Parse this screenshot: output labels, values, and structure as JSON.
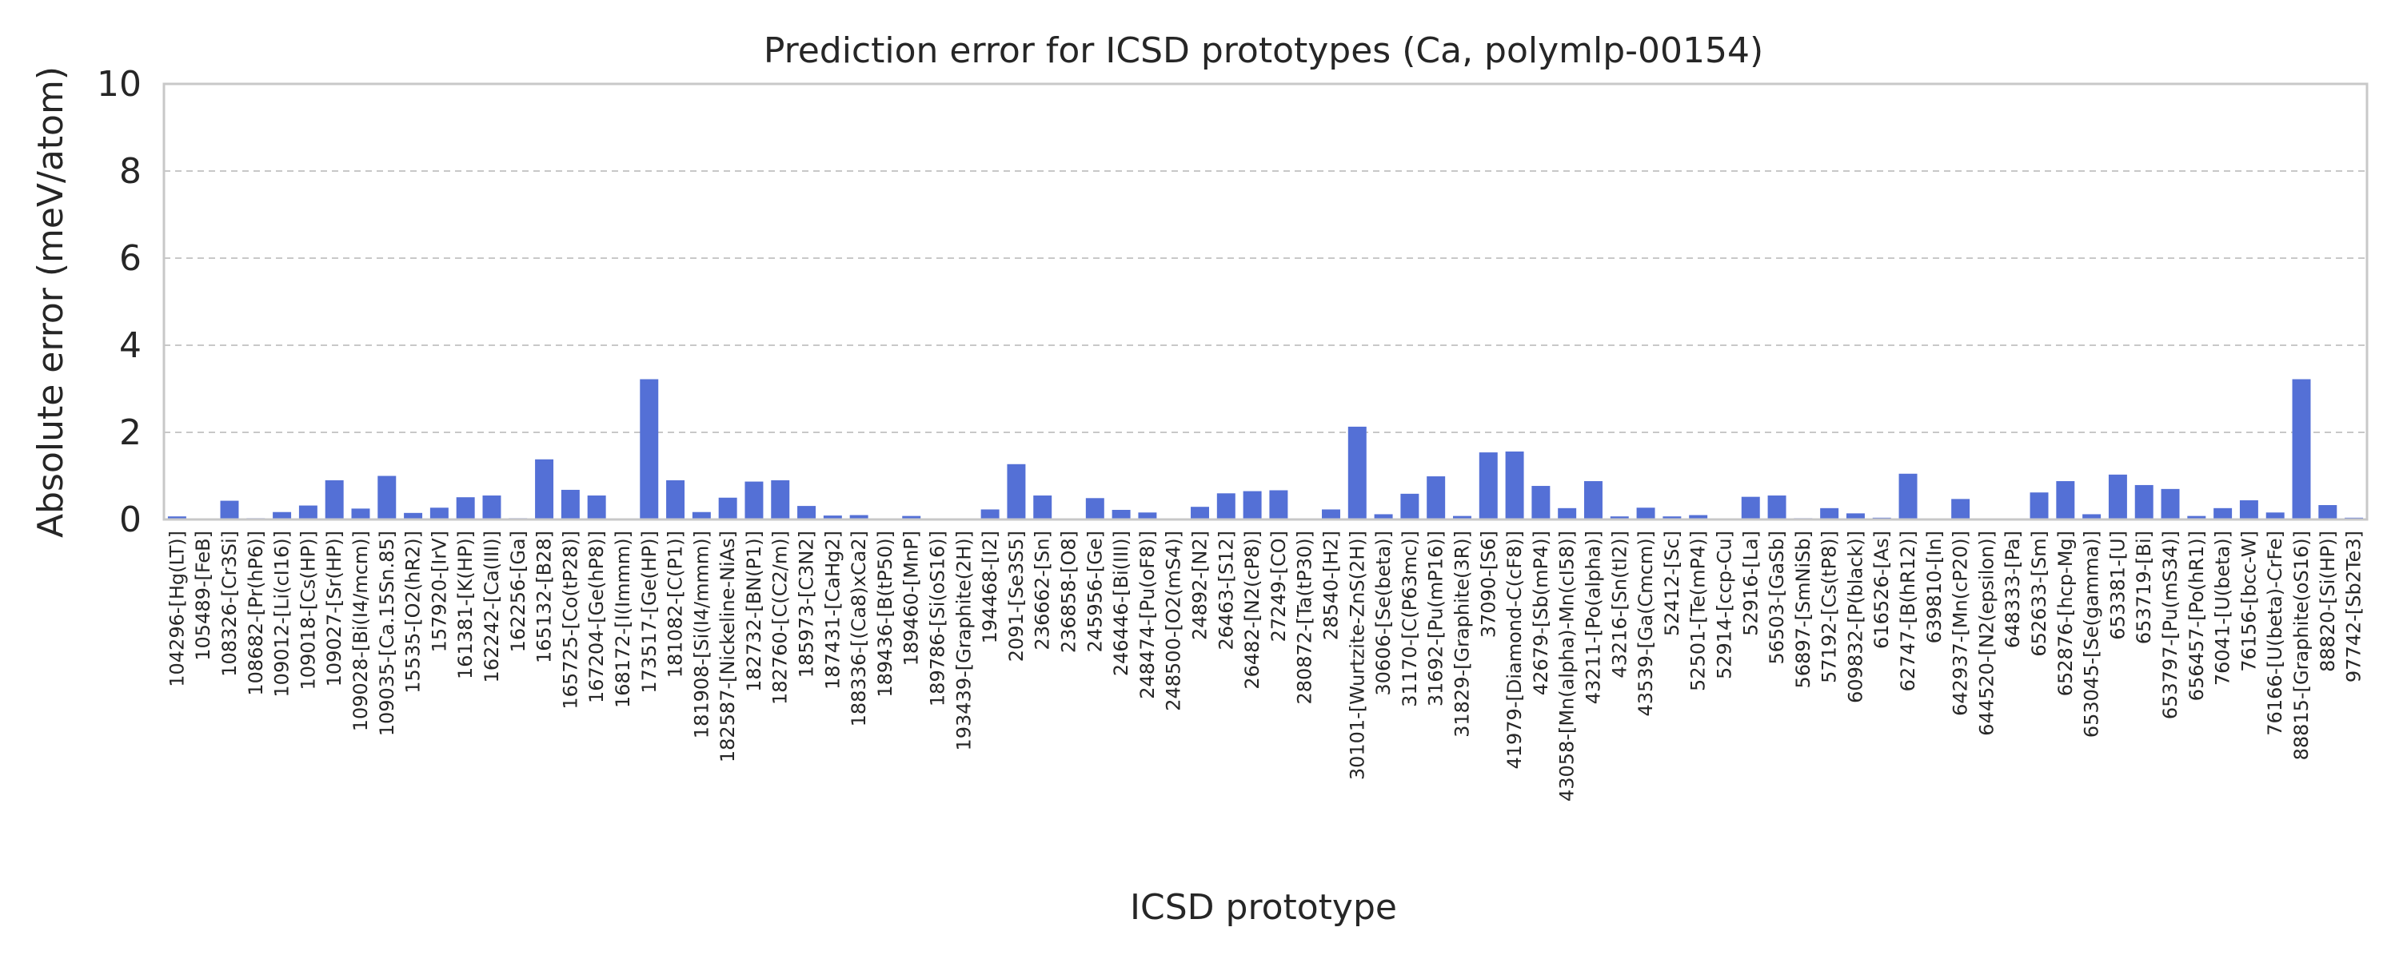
{
  "chart_data": {
    "type": "bar",
    "title": "Prediction error for ICSD prototypes (Ca, polymlp-00154)",
    "xlabel": "ICSD prototype",
    "ylabel": "Absolute error (meV/atom)",
    "ylim": [
      0,
      10
    ],
    "yticks": [
      "0",
      "2",
      "4",
      "6",
      "8",
      "10"
    ],
    "grid": true,
    "bar_color": "#5470d6",
    "categories": [
      "104296-[Hg(LT)]",
      "105489-[FeB]",
      "108326-[Cr3Si]",
      "108682-[Pr(hP6)]",
      "109012-[Li(cI16)]",
      "109018-[Cs(HP)]",
      "109027-[Sr(HP)]",
      "109028-[Bi(I4/mcm)]",
      "109035-[Ca.15Sn.85]",
      "15535-[O2(hR2)]",
      "157920-[IrV]",
      "161381-[K(HP)]",
      "162242-[Ca(III)]",
      "162256-[Ga]",
      "165132-[B28]",
      "165725-[Co(tP28)]",
      "167204-[Ge(hP8)]",
      "168172-[I(Immm)]",
      "173517-[Ge(HP)]",
      "181082-[C(P1)]",
      "181908-[Si(I4/mmm)]",
      "182587-[Nickeline-NiAs]",
      "182732-[BN(P1)]",
      "182760-[C(C2/m)]",
      "185973-[C3N2]",
      "187431-[CaHg2]",
      "188336-[(Ca8)xCa2]",
      "189436-[B(tP50)]",
      "189460-[MnP]",
      "189786-[Si(oS16)]",
      "193439-[Graphite(2H)]",
      "194468-[I2]",
      "2091-[Se3S5]",
      "236662-[Sn]",
      "236858-[O8]",
      "245956-[Ge]",
      "246446-[Bi(III)]",
      "248474-[Pu(oF8)]",
      "248500-[O2(mS4)]",
      "24892-[N2]",
      "26463-[S12]",
      "26482-[N2(cP8)]",
      "27249-[CO]",
      "280872-[Ta(tP30)]",
      "28540-[H2]",
      "30101-[Wurtzite-ZnS(2H)]",
      "30606-[Se(beta)]",
      "31170-[C(P63mc)]",
      "31692-[Pu(mP16)]",
      "31829-[Graphite(3R)]",
      "37090-[S6]",
      "41979-[Diamond-C(cF8)]",
      "42679-[Sb(mP4)]",
      "43058-[Mn(alpha)-Mn(cI58)]",
      "43211-[Po(alpha)]",
      "43216-[Sn(tI2)]",
      "43539-[Ga(Cmcm)]",
      "52412-[Sc]",
      "52501-[Te(mP4)]",
      "52914-[ccp-Cu]",
      "52916-[La]",
      "56503-[GaSb]",
      "56897-[SmNiSb]",
      "57192-[Cs(tP8)]",
      "609832-[P(black)]",
      "616526-[As]",
      "62747-[B(hR12)]",
      "639810-[In]",
      "642937-[Mn(cP20)]",
      "644520-[N2(epsilon)]",
      "648333-[Pa]",
      "652633-[Sm]",
      "652876-[hcp-Mg]",
      "653045-[Se(gamma)]",
      "653381-[U]",
      "653719-[Bi]",
      "653797-[Pu(mS34)]",
      "656457-[Po(hR1)]",
      "76041-[U(beta)]",
      "76156-[bcc-W]",
      "76166-[U(beta)-CrFe]",
      "88815-[Graphite(oS16)]",
      "88820-[Si(HP)]",
      "97742-[Sb2Te3]"
    ],
    "values": [
      0.07,
      0.0,
      0.43,
      0.03,
      0.17,
      0.32,
      0.9,
      0.25,
      1.0,
      0.15,
      0.27,
      0.51,
      0.55,
      0.03,
      1.38,
      0.68,
      0.55,
      0.0,
      3.22,
      0.9,
      0.17,
      0.5,
      0.87,
      0.9,
      0.31,
      0.09,
      0.1,
      0.0,
      0.08,
      0.0,
      0.0,
      0.23,
      1.27,
      0.55,
      0.0,
      0.49,
      0.22,
      0.16,
      0.0,
      0.29,
      0.6,
      0.65,
      0.67,
      0.0,
      0.23,
      2.13,
      0.12,
      0.59,
      0.99,
      0.08,
      1.54,
      1.56,
      0.77,
      0.26,
      0.88,
      0.07,
      0.27,
      0.07,
      0.1,
      0.0,
      0.52,
      0.55,
      0.03,
      0.26,
      0.14,
      0.04,
      1.05,
      0.0,
      0.47,
      0.0,
      0.0,
      0.62,
      0.88,
      0.12,
      1.03,
      0.79,
      0.7,
      0.08,
      0.26,
      0.44,
      0.16,
      3.22,
      0.33,
      0.04
    ]
  }
}
